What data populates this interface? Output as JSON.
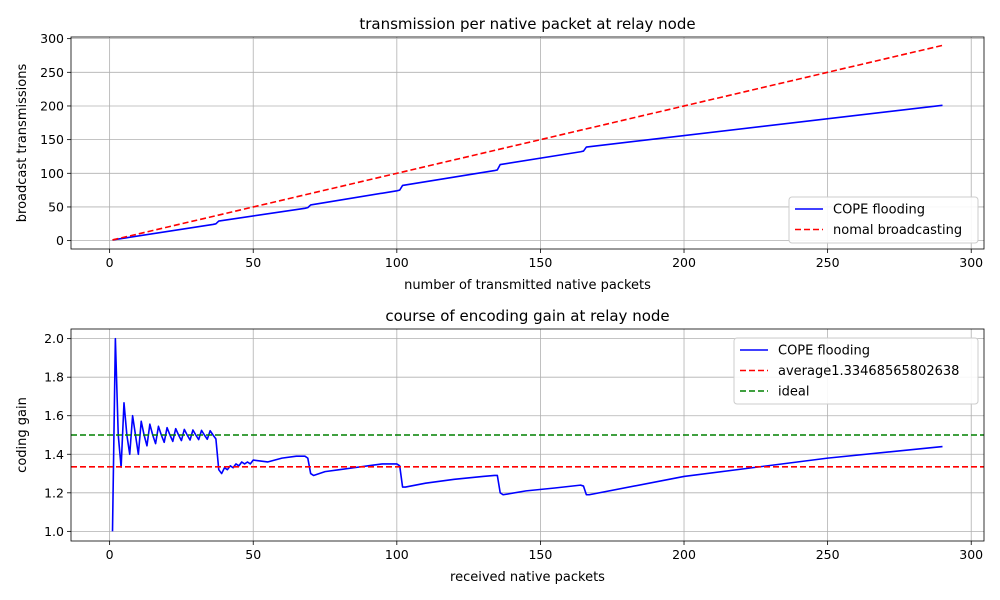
{
  "chart_data": [
    {
      "type": "line",
      "title": "transmission per native packet at relay node",
      "xlabel": "number of transmitted native packets",
      "ylabel": "broadcast transmissions",
      "xlim": [
        -13.45,
        304.45
      ],
      "ylim": [
        -12.45,
        302.45
      ],
      "xticks": [
        0,
        50,
        100,
        150,
        200,
        250,
        300
      ],
      "yticks": [
        0,
        50,
        100,
        150,
        200,
        250,
        300
      ],
      "grid": true,
      "legend_position": "lower-right",
      "series": [
        {
          "name": "COPE flooding",
          "color": "#0000ff",
          "style": "solid",
          "points": [
            [
              1,
              1
            ],
            [
              36,
              24
            ],
            [
              37,
              25
            ],
            [
              38,
              29
            ],
            [
              68,
              48
            ],
            [
              69,
              49
            ],
            [
              70,
              53
            ],
            [
              100,
              74
            ],
            [
              101,
              75
            ],
            [
              102,
              82
            ],
            [
              134,
              104
            ],
            [
              135,
              105
            ],
            [
              136,
              113
            ],
            [
              164,
              132
            ],
            [
              165,
              133
            ],
            [
              166,
              139
            ],
            [
              290,
              201
            ]
          ]
        },
        {
          "name": "nomal broadcasting",
          "color": "#ff0000",
          "style": "dashed",
          "points": [
            [
              1,
              1
            ],
            [
              290,
              290
            ]
          ]
        }
      ]
    },
    {
      "type": "line",
      "title": "course of encoding gain at relay node",
      "xlabel": "received native packets",
      "ylabel": "coding gain",
      "xlim": [
        -13.45,
        304.45
      ],
      "ylim": [
        0.95,
        2.05
      ],
      "xticks": [
        0,
        50,
        100,
        150,
        200,
        250,
        300
      ],
      "yticks": [
        1.0,
        1.2,
        1.4,
        1.6,
        1.8,
        2.0
      ],
      "ytick_labels": [
        "1.0",
        "1.2",
        "1.4",
        "1.6",
        "1.8",
        "2.0"
      ],
      "grid": true,
      "legend_position": "upper-right",
      "series": [
        {
          "name": "COPE flooding",
          "color": "#0000ff",
          "style": "solid",
          "points": [
            [
              1,
              1.0
            ],
            [
              2,
              2.0
            ],
            [
              3,
              1.5
            ],
            [
              4,
              1.333
            ],
            [
              5,
              1.667
            ],
            [
              6,
              1.5
            ],
            [
              7,
              1.4
            ],
            [
              8,
              1.6
            ],
            [
              9,
              1.5
            ],
            [
              10,
              1.4
            ],
            [
              11,
              1.571
            ],
            [
              12,
              1.5
            ],
            [
              13,
              1.444
            ],
            [
              14,
              1.556
            ],
            [
              15,
              1.5
            ],
            [
              16,
              1.455
            ],
            [
              17,
              1.545
            ],
            [
              18,
              1.5
            ],
            [
              19,
              1.462
            ],
            [
              20,
              1.538
            ],
            [
              21,
              1.5
            ],
            [
              22,
              1.467
            ],
            [
              23,
              1.533
            ],
            [
              24,
              1.5
            ],
            [
              25,
              1.471
            ],
            [
              26,
              1.529
            ],
            [
              27,
              1.5
            ],
            [
              28,
              1.474
            ],
            [
              29,
              1.526
            ],
            [
              30,
              1.5
            ],
            [
              31,
              1.476
            ],
            [
              32,
              1.524
            ],
            [
              33,
              1.5
            ],
            [
              34,
              1.478
            ],
            [
              35,
              1.522
            ],
            [
              36,
              1.5
            ],
            [
              37,
              1.48
            ],
            [
              38,
              1.32
            ],
            [
              39,
              1.3
            ],
            [
              40,
              1.33
            ],
            [
              41,
              1.32
            ],
            [
              42,
              1.34
            ],
            [
              43,
              1.33
            ],
            [
              44,
              1.35
            ],
            [
              45,
              1.34
            ],
            [
              46,
              1.36
            ],
            [
              47,
              1.35
            ],
            [
              48,
              1.36
            ],
            [
              49,
              1.35
            ],
            [
              50,
              1.37
            ],
            [
              55,
              1.36
            ],
            [
              60,
              1.38
            ],
            [
              65,
              1.39
            ],
            [
              68,
              1.39
            ],
            [
              69,
              1.38
            ],
            [
              70,
              1.3
            ],
            [
              71,
              1.29
            ],
            [
              75,
              1.31
            ],
            [
              80,
              1.32
            ],
            [
              85,
              1.33
            ],
            [
              90,
              1.34
            ],
            [
              95,
              1.35
            ],
            [
              100,
              1.35
            ],
            [
              101,
              1.34
            ],
            [
              102,
              1.23
            ],
            [
              103,
              1.23
            ],
            [
              110,
              1.25
            ],
            [
              120,
              1.27
            ],
            [
              130,
              1.285
            ],
            [
              134,
              1.29
            ],
            [
              135,
              1.29
            ],
            [
              136,
              1.2
            ],
            [
              137,
              1.19
            ],
            [
              145,
              1.21
            ],
            [
              155,
              1.225
            ],
            [
              164,
              1.24
            ],
            [
              165,
              1.235
            ],
            [
              166,
              1.19
            ],
            [
              167,
              1.19
            ],
            [
              200,
              1.285
            ],
            [
              250,
              1.38
            ],
            [
              290,
              1.44
            ]
          ]
        },
        {
          "name": "average1.33468565802638",
          "color": "#ff0000",
          "style": "dashed",
          "hline": 1.33468565802638
        },
        {
          "name": "ideal",
          "color": "#008000",
          "style": "dashed",
          "hline": 1.5
        }
      ]
    }
  ]
}
